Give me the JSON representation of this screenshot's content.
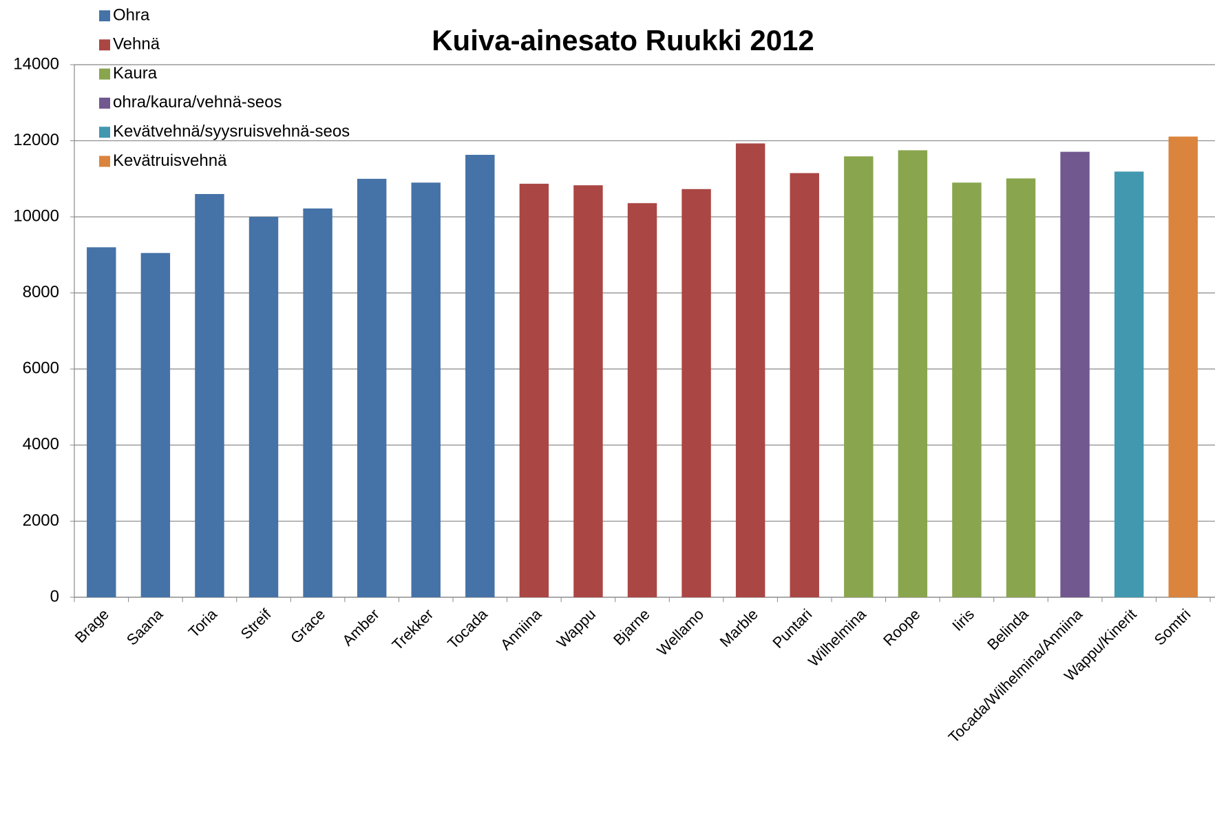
{
  "chart_data": {
    "type": "bar",
    "title": "Kuiva-ainesato Ruukki 2012",
    "categories": [
      "Brage",
      "Saana",
      "Toria",
      "Streif",
      "Grace",
      "Amber",
      "Trekker",
      "Tocada",
      "Anniina",
      "Wappu",
      "Bjarne",
      "Wellamo",
      "Marble",
      "Puntari",
      "Wilhelmina",
      "Roope",
      "Iiris",
      "Belinda",
      "Tocada/Wilhelmina/Anniina",
      "Wappu/Kinerit",
      "Somtri"
    ],
    "series": [
      {
        "name": "Ohra",
        "color": "#4572a7",
        "values": [
          9200,
          9050,
          10600,
          10000,
          10220,
          11000,
          10900,
          11630,
          null,
          null,
          null,
          null,
          null,
          null,
          null,
          null,
          null,
          null,
          null,
          null,
          null
        ]
      },
      {
        "name": "Vehnä",
        "color": "#aa4643",
        "values": [
          null,
          null,
          null,
          null,
          null,
          null,
          null,
          null,
          10870,
          10830,
          10360,
          10730,
          11930,
          11150,
          null,
          null,
          null,
          null,
          null,
          null,
          null
        ]
      },
      {
        "name": "Kaura",
        "color": "#89a54e",
        "values": [
          null,
          null,
          null,
          null,
          null,
          null,
          null,
          null,
          null,
          null,
          null,
          null,
          null,
          null,
          11590,
          11750,
          10900,
          11010,
          null,
          null,
          null
        ]
      },
      {
        "name": "ohra/kaura/vehnä-seos",
        "color": "#71588f",
        "values": [
          null,
          null,
          null,
          null,
          null,
          null,
          null,
          null,
          null,
          null,
          null,
          null,
          null,
          null,
          null,
          null,
          null,
          null,
          11710,
          null,
          null
        ]
      },
      {
        "name": "Kevätvehnä/syysruisvehnä-seos",
        "color": "#4198af",
        "values": [
          null,
          null,
          null,
          null,
          null,
          null,
          null,
          null,
          null,
          null,
          null,
          null,
          null,
          null,
          null,
          null,
          null,
          null,
          null,
          11190,
          null
        ]
      },
      {
        "name": "Kevätruisvehnä",
        "color": "#db843d",
        "values": [
          null,
          null,
          null,
          null,
          null,
          null,
          null,
          null,
          null,
          null,
          null,
          null,
          null,
          null,
          null,
          null,
          null,
          null,
          null,
          null,
          12110
        ]
      }
    ],
    "ylim": [
      0,
      14000
    ],
    "yticks": [
      0,
      2000,
      4000,
      6000,
      8000,
      10000,
      12000,
      14000
    ],
    "grid": true
  }
}
